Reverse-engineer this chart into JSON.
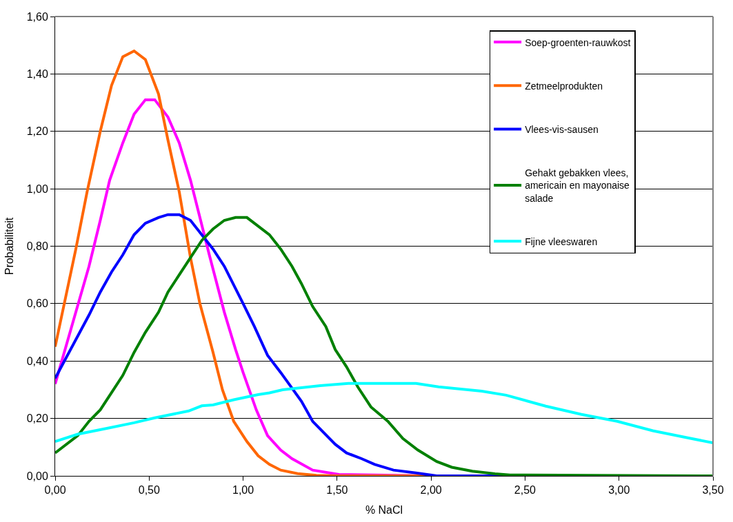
{
  "chart_data": {
    "type": "line",
    "xlabel": "% NaCl",
    "ylabel": "Probabiliteit",
    "xlim": [
      0,
      3.5
    ],
    "ylim": [
      0,
      1.6
    ],
    "xticks": [
      {
        "value": 0,
        "label": "0,00"
      },
      {
        "value": 0.5,
        "label": "0,50"
      },
      {
        "value": 1,
        "label": "1,00"
      },
      {
        "value": 1.5,
        "label": "1,50"
      },
      {
        "value": 2,
        "label": "2,00"
      },
      {
        "value": 2.5,
        "label": "2,50"
      },
      {
        "value": 3,
        "label": "3,00"
      },
      {
        "value": 3.5,
        "label": "3,50"
      }
    ],
    "yticks": [
      {
        "value": 0,
        "label": "0,00"
      },
      {
        "value": 0.2,
        "label": "0,20"
      },
      {
        "value": 0.4,
        "label": "0,40"
      },
      {
        "value": 0.6,
        "label": "0,60"
      },
      {
        "value": 0.8,
        "label": "0,80"
      },
      {
        "value": 1,
        "label": "1,00"
      },
      {
        "value": 1.2,
        "label": "1,20"
      },
      {
        "value": 1.4,
        "label": "1,40"
      },
      {
        "value": 1.6,
        "label": "1,60"
      }
    ],
    "grid": "y",
    "legend": "top right",
    "marker": "none",
    "line_style": "solid",
    "series": [
      {
        "name": "Soep-groenten-rauwkost",
        "color": "#ff00ff",
        "x": [
          0,
          0.18,
          0.24,
          0.29,
          0.36,
          0.42,
          0.48,
          0.53,
          0.6,
          0.66,
          0.72,
          0.82,
          0.9,
          0.96,
          1.0,
          1.07,
          1.13,
          1.2,
          1.26,
          1.37,
          1.51,
          2.0,
          3.5
        ],
        "values": [
          0.32,
          0.73,
          0.89,
          1.03,
          1.16,
          1.26,
          1.31,
          1.31,
          1.25,
          1.16,
          1.03,
          0.77,
          0.57,
          0.44,
          0.36,
          0.23,
          0.14,
          0.09,
          0.06,
          0.02,
          0.005,
          0,
          0
        ]
      },
      {
        "name": "Zetmeelprodukten",
        "color": "#ff6600",
        "x": [
          0,
          0.11,
          0.17,
          0.24,
          0.3,
          0.36,
          0.42,
          0.48,
          0.55,
          0.6,
          0.66,
          0.72,
          0.77,
          0.84,
          0.89,
          0.95,
          1.02,
          1.08,
          1.14,
          1.2,
          1.29,
          1.39,
          1.5,
          2.0
        ],
        "values": [
          0.45,
          0.79,
          0.99,
          1.2,
          1.36,
          1.46,
          1.48,
          1.45,
          1.33,
          1.17,
          0.99,
          0.76,
          0.6,
          0.43,
          0.3,
          0.19,
          0.12,
          0.07,
          0.04,
          0.02,
          0.008,
          0.002,
          0,
          0
        ]
      },
      {
        "name": "Vlees-vis-sausen",
        "color": "#0000ff",
        "x": [
          0,
          0.18,
          0.24,
          0.3,
          0.36,
          0.42,
          0.48,
          0.55,
          0.6,
          0.66,
          0.72,
          0.84,
          0.9,
          1.0,
          1.06,
          1.13,
          1.2,
          1.31,
          1.37,
          1.49,
          1.55,
          1.63,
          1.7,
          1.8,
          1.92,
          2.03,
          3.5
        ],
        "values": [
          0.34,
          0.56,
          0.64,
          0.71,
          0.77,
          0.84,
          0.88,
          0.9,
          0.91,
          0.91,
          0.89,
          0.79,
          0.73,
          0.6,
          0.52,
          0.42,
          0.36,
          0.26,
          0.19,
          0.11,
          0.08,
          0.06,
          0.04,
          0.02,
          0.01,
          0,
          0
        ]
      },
      {
        "name": "Gehakt gebakken vlees, americain en mayonaise salade",
        "color": "#008000",
        "x": [
          0,
          0.12,
          0.18,
          0.24,
          0.3,
          0.36,
          0.42,
          0.48,
          0.55,
          0.6,
          0.66,
          0.72,
          0.78,
          0.84,
          0.9,
          0.96,
          1.02,
          1.08,
          1.14,
          1.2,
          1.26,
          1.31,
          1.37,
          1.44,
          1.49,
          1.55,
          1.61,
          1.68,
          1.77,
          1.85,
          1.93,
          2.03,
          2.11,
          2.22,
          2.34,
          2.42,
          3.5
        ],
        "values": [
          0.08,
          0.14,
          0.19,
          0.23,
          0.29,
          0.35,
          0.43,
          0.5,
          0.57,
          0.64,
          0.7,
          0.76,
          0.82,
          0.86,
          0.89,
          0.9,
          0.9,
          0.87,
          0.84,
          0.79,
          0.73,
          0.67,
          0.59,
          0.52,
          0.44,
          0.38,
          0.31,
          0.24,
          0.19,
          0.13,
          0.09,
          0.05,
          0.03,
          0.016,
          0.007,
          0.003,
          0
        ]
      },
      {
        "name": "Fijne vleeswaren",
        "color": "#00ffff",
        "x": [
          0,
          0.12,
          0.28,
          0.42,
          0.53,
          0.71,
          0.78,
          0.84,
          0.95,
          1.08,
          1.14,
          1.21,
          1.41,
          1.56,
          1.92,
          2.04,
          2.27,
          2.4,
          2.61,
          2.8,
          2.99,
          3.18,
          3.37,
          3.5
        ],
        "values": [
          0.12,
          0.145,
          0.166,
          0.185,
          0.202,
          0.226,
          0.244,
          0.247,
          0.265,
          0.283,
          0.289,
          0.3,
          0.314,
          0.322,
          0.322,
          0.31,
          0.295,
          0.281,
          0.243,
          0.214,
          0.19,
          0.157,
          0.132,
          0.115
        ]
      }
    ]
  }
}
